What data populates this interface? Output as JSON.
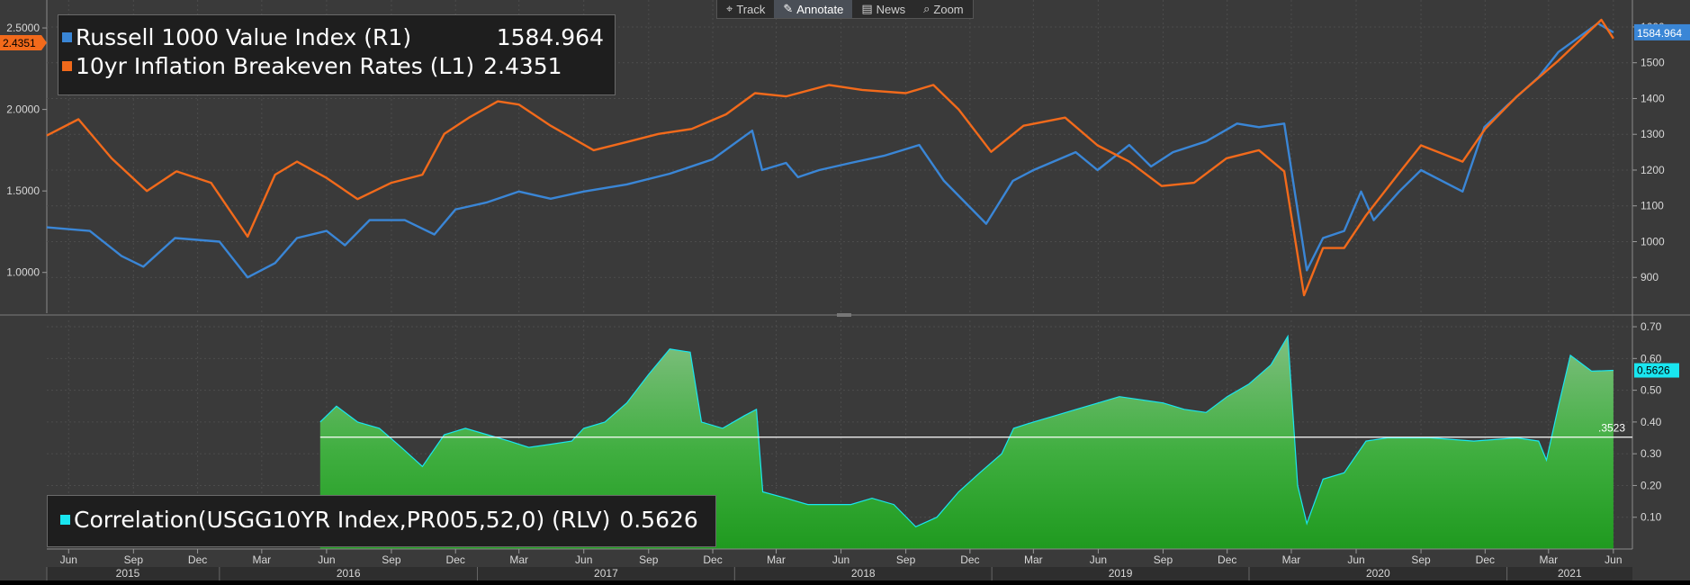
{
  "toolbar": {
    "items": [
      {
        "label": "Track",
        "icon": "crosshair-icon",
        "active": false
      },
      {
        "label": "Annotate",
        "icon": "pencil-icon",
        "active": true
      },
      {
        "label": "News",
        "icon": "news-icon",
        "active": false
      },
      {
        "label": "Zoom",
        "icon": "magnifier-icon",
        "active": false
      }
    ]
  },
  "legend_top": {
    "rows": [
      {
        "name": "Russell 1000 Value Index (R1)",
        "value": "1584.964",
        "color": "#3a86d6"
      },
      {
        "name": "10yr Inflation Breakeven Rates (L1)",
        "value": "2.4351",
        "color": "#f26a1b"
      }
    ]
  },
  "legend_bottom": {
    "name": "Correlation(USGG10YR Index,PR005,52,0) (RLV)",
    "value": "0.5626",
    "color": "#19e6f0"
  },
  "chart_data": [
    {
      "type": "line",
      "x_axis": {
        "start": "2015-05",
        "end": "2021-06"
      },
      "y_left": {
        "ticks": [
          "1.0000",
          "1.5000",
          "2.0000",
          "2.5000"
        ],
        "range": [
          0.75,
          2.55
        ]
      },
      "y_right": {
        "ticks": [
          "900",
          "1000",
          "1100",
          "1200",
          "1300",
          "1400",
          "1500",
          "1600"
        ],
        "range": [
          800,
          1620
        ]
      },
      "last_labels": {
        "left": "2.4351",
        "right": "1584.964"
      },
      "series": [
        {
          "name": "Russell 1000 Value Index (R1)",
          "axis": "right",
          "color": "#3a86d6",
          "points": [
            [
              "2015-05-01",
              1040
            ],
            [
              "2015-07-01",
              1030
            ],
            [
              "2015-08-15",
              960
            ],
            [
              "2015-09-15",
              930
            ],
            [
              "2015-10-30",
              1010
            ],
            [
              "2016-01-01",
              1000
            ],
            [
              "2016-02-10",
              900
            ],
            [
              "2016-03-20",
              940
            ],
            [
              "2016-04-20",
              1010
            ],
            [
              "2016-06-01",
              1030
            ],
            [
              "2016-06-27",
              990
            ],
            [
              "2016-08-01",
              1060
            ],
            [
              "2016-09-20",
              1060
            ],
            [
              "2016-11-01",
              1020
            ],
            [
              "2016-12-01",
              1090
            ],
            [
              "2017-01-15",
              1110
            ],
            [
              "2017-03-01",
              1140
            ],
            [
              "2017-04-15",
              1120
            ],
            [
              "2017-06-01",
              1140
            ],
            [
              "2017-08-01",
              1160
            ],
            [
              "2017-10-01",
              1190
            ],
            [
              "2017-12-01",
              1230
            ],
            [
              "2018-01-26",
              1310
            ],
            [
              "2018-02-09",
              1200
            ],
            [
              "2018-03-15",
              1220
            ],
            [
              "2018-04-01",
              1180
            ],
            [
              "2018-05-01",
              1200
            ],
            [
              "2018-06-15",
              1220
            ],
            [
              "2018-08-01",
              1240
            ],
            [
              "2018-09-20",
              1270
            ],
            [
              "2018-10-25",
              1170
            ],
            [
              "2018-12-24",
              1050
            ],
            [
              "2019-01-31",
              1170
            ],
            [
              "2019-03-01",
              1200
            ],
            [
              "2019-04-30",
              1250
            ],
            [
              "2019-05-31",
              1200
            ],
            [
              "2019-07-15",
              1270
            ],
            [
              "2019-08-15",
              1210
            ],
            [
              "2019-09-15",
              1250
            ],
            [
              "2019-11-01",
              1280
            ],
            [
              "2019-12-15",
              1330
            ],
            [
              "2020-01-15",
              1320
            ],
            [
              "2020-02-20",
              1330
            ],
            [
              "2020-03-23",
              920
            ],
            [
              "2020-04-15",
              1010
            ],
            [
              "2020-05-15",
              1030
            ],
            [
              "2020-06-08",
              1140
            ],
            [
              "2020-06-26",
              1060
            ],
            [
              "2020-08-01",
              1140
            ],
            [
              "2020-09-01",
              1200
            ],
            [
              "2020-10-30",
              1140
            ],
            [
              "2020-11-30",
              1320
            ],
            [
              "2021-01-01",
              1380
            ],
            [
              "2021-02-15",
              1460
            ],
            [
              "2021-03-15",
              1530
            ],
            [
              "2021-05-10",
              1610
            ],
            [
              "2021-06-01",
              1585
            ]
          ]
        },
        {
          "name": "10yr Inflation Breakeven Rates (L1)",
          "axis": "left",
          "color": "#f26a1b",
          "points": [
            [
              "2015-05-01",
              1.84
            ],
            [
              "2015-06-15",
              1.94
            ],
            [
              "2015-08-01",
              1.7
            ],
            [
              "2015-09-20",
              1.5
            ],
            [
              "2015-11-01",
              1.62
            ],
            [
              "2015-12-20",
              1.55
            ],
            [
              "2016-02-10",
              1.22
            ],
            [
              "2016-03-20",
              1.6
            ],
            [
              "2016-04-20",
              1.68
            ],
            [
              "2016-06-01",
              1.58
            ],
            [
              "2016-07-15",
              1.45
            ],
            [
              "2016-09-01",
              1.55
            ],
            [
              "2016-10-15",
              1.6
            ],
            [
              "2016-11-15",
              1.85
            ],
            [
              "2016-12-20",
              1.95
            ],
            [
              "2017-01-30",
              2.05
            ],
            [
              "2017-03-01",
              2.03
            ],
            [
              "2017-04-15",
              1.9
            ],
            [
              "2017-06-15",
              1.75
            ],
            [
              "2017-08-01",
              1.8
            ],
            [
              "2017-09-15",
              1.85
            ],
            [
              "2017-11-01",
              1.88
            ],
            [
              "2017-12-20",
              1.97
            ],
            [
              "2018-01-30",
              2.1
            ],
            [
              "2018-03-15",
              2.08
            ],
            [
              "2018-05-15",
              2.15
            ],
            [
              "2018-07-01",
              2.12
            ],
            [
              "2018-09-01",
              2.1
            ],
            [
              "2018-10-10",
              2.15
            ],
            [
              "2018-11-15",
              2.0
            ],
            [
              "2018-12-31",
              1.74
            ],
            [
              "2019-02-15",
              1.9
            ],
            [
              "2019-04-15",
              1.95
            ],
            [
              "2019-05-31",
              1.78
            ],
            [
              "2019-07-15",
              1.68
            ],
            [
              "2019-08-30",
              1.53
            ],
            [
              "2019-10-15",
              1.55
            ],
            [
              "2019-11-30",
              1.7
            ],
            [
              "2020-01-15",
              1.75
            ],
            [
              "2020-02-20",
              1.62
            ],
            [
              "2020-03-19",
              0.86
            ],
            [
              "2020-04-15",
              1.15
            ],
            [
              "2020-05-15",
              1.15
            ],
            [
              "2020-06-15",
              1.35
            ],
            [
              "2020-07-30",
              1.6
            ],
            [
              "2020-09-01",
              1.78
            ],
            [
              "2020-10-30",
              1.68
            ],
            [
              "2020-12-01",
              1.88
            ],
            [
              "2021-01-15",
              2.08
            ],
            [
              "2021-03-15",
              2.3
            ],
            [
              "2021-05-15",
              2.55
            ],
            [
              "2021-06-01",
              2.4351
            ]
          ]
        }
      ]
    },
    {
      "type": "area",
      "y_right": {
        "ticks": [
          "0.10",
          "0.20",
          "0.30",
          "0.40",
          "0.50",
          "0.60",
          "0.70"
        ],
        "range": [
          0.0,
          0.72
        ]
      },
      "reference_line": {
        "value": 0.3523,
        "label": ".3523"
      },
      "last_label": "0.5626",
      "series": [
        {
          "name": "Correlation(USGG10YR Index,PR005,52,0) (RLV)",
          "color": "#19e6f0",
          "points": [
            [
              "2016-05-23",
              0.4
            ],
            [
              "2016-06-15",
              0.45
            ],
            [
              "2016-07-15",
              0.4
            ],
            [
              "2016-08-15",
              0.38
            ],
            [
              "2016-09-15",
              0.32
            ],
            [
              "2016-10-15",
              0.26
            ],
            [
              "2016-11-15",
              0.36
            ],
            [
              "2016-12-15",
              0.38
            ],
            [
              "2017-01-15",
              0.36
            ],
            [
              "2017-02-15",
              0.34
            ],
            [
              "2017-03-15",
              0.32
            ],
            [
              "2017-04-15",
              0.33
            ],
            [
              "2017-05-15",
              0.34
            ],
            [
              "2017-06-01",
              0.38
            ],
            [
              "2017-07-01",
              0.4
            ],
            [
              "2017-08-01",
              0.46
            ],
            [
              "2017-09-01",
              0.55
            ],
            [
              "2017-10-01",
              0.63
            ],
            [
              "2017-10-30",
              0.62
            ],
            [
              "2017-11-15",
              0.4
            ],
            [
              "2017-12-15",
              0.38
            ],
            [
              "2018-01-15",
              0.42
            ],
            [
              "2018-02-01",
              0.44
            ],
            [
              "2018-02-10",
              0.18
            ],
            [
              "2018-03-15",
              0.16
            ],
            [
              "2018-04-15",
              0.14
            ],
            [
              "2018-05-15",
              0.14
            ],
            [
              "2018-06-15",
              0.14
            ],
            [
              "2018-07-15",
              0.16
            ],
            [
              "2018-08-15",
              0.14
            ],
            [
              "2018-09-15",
              0.07
            ],
            [
              "2018-10-15",
              0.1
            ],
            [
              "2018-11-15",
              0.18
            ],
            [
              "2018-12-15",
              0.24
            ],
            [
              "2019-01-15",
              0.3
            ],
            [
              "2019-02-01",
              0.38
            ],
            [
              "2019-03-01",
              0.4
            ],
            [
              "2019-04-01",
              0.42
            ],
            [
              "2019-05-01",
              0.44
            ],
            [
              "2019-06-01",
              0.46
            ],
            [
              "2019-07-01",
              0.48
            ],
            [
              "2019-08-01",
              0.47
            ],
            [
              "2019-09-01",
              0.46
            ],
            [
              "2019-10-01",
              0.44
            ],
            [
              "2019-11-01",
              0.43
            ],
            [
              "2019-12-01",
              0.48
            ],
            [
              "2020-01-01",
              0.52
            ],
            [
              "2020-02-01",
              0.58
            ],
            [
              "2020-02-25",
              0.67
            ],
            [
              "2020-03-10",
              0.2
            ],
            [
              "2020-03-23",
              0.08
            ],
            [
              "2020-04-15",
              0.22
            ],
            [
              "2020-05-15",
              0.24
            ],
            [
              "2020-06-15",
              0.34
            ],
            [
              "2020-07-15",
              0.35
            ],
            [
              "2020-09-15",
              0.35
            ],
            [
              "2020-11-15",
              0.34
            ],
            [
              "2021-01-15",
              0.35
            ],
            [
              "2021-02-15",
              0.34
            ],
            [
              "2021-02-26",
              0.28
            ],
            [
              "2021-03-15",
              0.45
            ],
            [
              "2021-04-01",
              0.61
            ],
            [
              "2021-05-01",
              0.56
            ],
            [
              "2021-06-01",
              0.5626
            ]
          ]
        }
      ]
    }
  ],
  "x_axis_labels": {
    "months": [
      "Jun",
      "Sep",
      "Dec",
      "Mar",
      "Jun",
      "Sep",
      "Dec",
      "Mar",
      "Jun",
      "Sep",
      "Dec",
      "Mar",
      "Jun",
      "Sep",
      "Dec",
      "Mar",
      "Jun",
      "Sep",
      "Dec",
      "Mar",
      "Jun",
      "Sep",
      "Dec",
      "Mar",
      "Jun"
    ],
    "years": [
      "2015",
      "2016",
      "2017",
      "2018",
      "2019",
      "2020",
      "2021"
    ]
  }
}
